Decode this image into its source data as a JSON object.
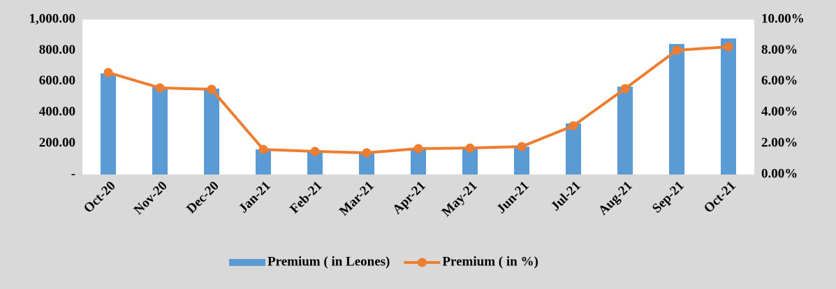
{
  "chart_data": {
    "type": "bar-line",
    "categories": [
      "Oct-20",
      "Nov-20",
      "Dec-20",
      "Jan-21",
      "Feb-21",
      "Mar-21",
      "Apr-21",
      "May-21",
      "Jun-21",
      "Jul-21",
      "Aug-21",
      "Sep-21",
      "Oct-21"
    ],
    "series": [
      {
        "name": "Premium ( in Leones)",
        "color": "#5b9bd5",
        "type": "bar",
        "values": [
          653,
          563,
          554,
          162,
          150,
          140,
          170,
          172,
          180,
          330,
          567,
          842,
          878
        ]
      },
      {
        "name": "Premium ( in %)",
        "color": "#ed7d31",
        "type": "line",
        "axis": "y2",
        "values": [
          6.58,
          5.59,
          5.5,
          1.62,
          1.49,
          1.4,
          1.67,
          1.71,
          1.8,
          3.15,
          5.54,
          8.02,
          8.24
        ]
      }
    ],
    "ylim": [
      0,
      1000
    ],
    "yticks": [
      {
        "value": 0,
        "label": "-"
      },
      {
        "value": 200,
        "label": "200.00"
      },
      {
        "value": 400,
        "label": "400.00"
      },
      {
        "value": 600,
        "label": "600.00"
      },
      {
        "value": 800,
        "label": "800.00"
      },
      {
        "value": 1000,
        "label": "1,000.00"
      }
    ],
    "y2lim": [
      0,
      10
    ],
    "y2ticks": [
      {
        "value": 0,
        "label": "0.00%"
      },
      {
        "value": 2,
        "label": "2.00%"
      },
      {
        "value": 4,
        "label": "4.00%"
      },
      {
        "value": 6,
        "label": "6.00%"
      },
      {
        "value": 8,
        "label": "8.00%"
      },
      {
        "value": 10,
        "label": "10.00%"
      }
    ],
    "legend": "bottom"
  }
}
